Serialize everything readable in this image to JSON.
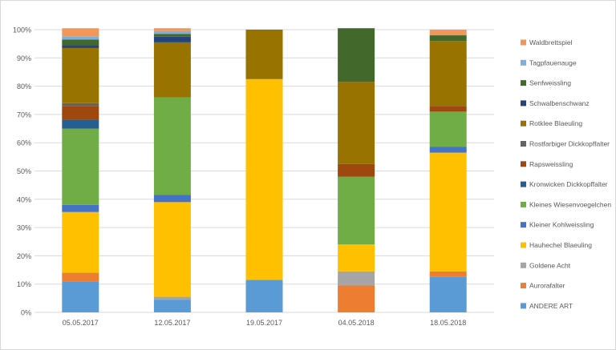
{
  "chart_data": {
    "type": "bar",
    "stacked": "percent",
    "title": "",
    "xlabel": "",
    "ylabel": "",
    "ylim": [
      0,
      100
    ],
    "y_ticks": [
      "0%",
      "10%",
      "20%",
      "30%",
      "40%",
      "50%",
      "60%",
      "70%",
      "80%",
      "90%",
      "100%"
    ],
    "grid": true,
    "legend_position": "right",
    "categories": [
      "05.05.2017",
      "12.05.2017",
      "19.05.2017",
      "04.05.2018",
      "18.05.2018"
    ],
    "series": [
      {
        "name": "ANDERE ART",
        "color": "#5b9bd5",
        "values": [
          11,
          4.5,
          11.5,
          0,
          12.5
        ]
      },
      {
        "name": "Aurorafalter",
        "color": "#ed7d31",
        "values": [
          3,
          0,
          0,
          9.5,
          2
        ]
      },
      {
        "name": "Goldene Acht",
        "color": "#a5a5a5",
        "values": [
          0,
          1,
          0,
          5,
          0
        ]
      },
      {
        "name": "Hauhechel Blaeuling",
        "color": "#ffc000",
        "values": [
          21.5,
          33.5,
          71,
          9.5,
          42
        ]
      },
      {
        "name": "Kleiner Kohlweissling",
        "color": "#4472c4",
        "values": [
          2.5,
          2.5,
          0,
          0,
          2
        ]
      },
      {
        "name": "Kleines Wiesenvoegelchen",
        "color": "#70ad47",
        "values": [
          27,
          34.5,
          0,
          24,
          12.5
        ]
      },
      {
        "name": "Kronwicken Dickkopffalter",
        "color": "#255e91",
        "values": [
          3,
          0,
          0,
          0,
          0
        ]
      },
      {
        "name": "Rapsweissling",
        "color": "#9e480e",
        "values": [
          5,
          0,
          0,
          4.5,
          2
        ]
      },
      {
        "name": "Rostfarbiger Dickkopffalter",
        "color": "#636363",
        "values": [
          1,
          0,
          0,
          0,
          0
        ]
      },
      {
        "name": "Rotklee Blaeuling",
        "color": "#997300",
        "values": [
          19.5,
          19.5,
          17.5,
          29,
          23
        ]
      },
      {
        "name": "Schwalbenschwanz",
        "color": "#264478",
        "values": [
          1,
          2,
          0,
          0,
          0
        ]
      },
      {
        "name": "Senfweissling",
        "color": "#43682b",
        "values": [
          2,
          1,
          0,
          19,
          2
        ]
      },
      {
        "name": "Tagpfauenauge",
        "color": "#7cafdd",
        "values": [
          1,
          1,
          0,
          0,
          0
        ]
      },
      {
        "name": "Waldbrettspiel",
        "color": "#f1975a",
        "values": [
          3,
          1,
          0,
          0,
          2
        ]
      }
    ]
  }
}
